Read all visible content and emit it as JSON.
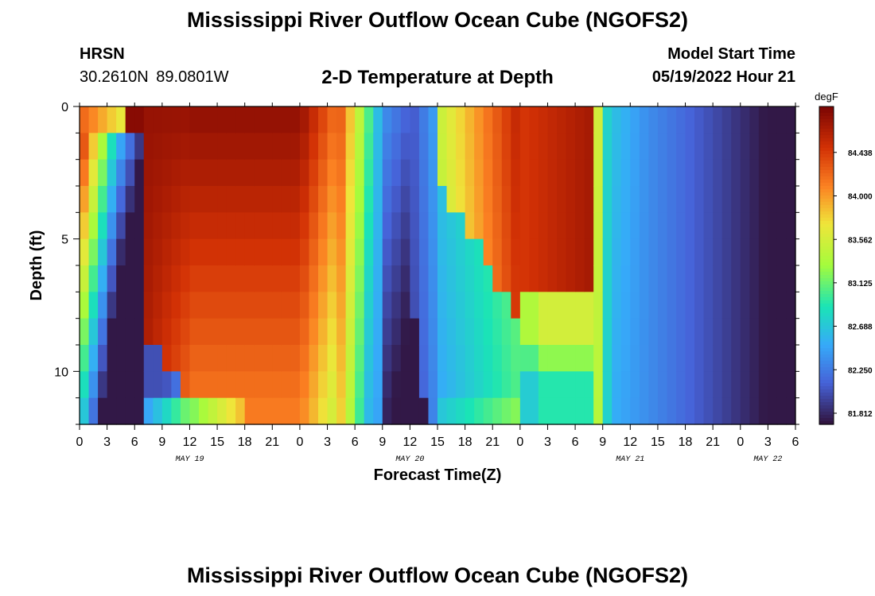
{
  "header": {
    "title": "Mississippi River Outflow Ocean Cube (NGOFS2)",
    "station": "HRSN",
    "coords": "30.2610N  89.0801W",
    "subtitle": "2-D Temperature at Depth",
    "model_label": "Model Start Time",
    "model_time": "05/19/2022 Hour 21"
  },
  "footer": {
    "title": "Mississippi River Outflow Ocean Cube (NGOFS2)"
  },
  "chart_data": {
    "type": "heatmap",
    "title": "2-D Temperature at Depth",
    "xlabel": "Forecast Time(Z)",
    "ylabel": "Depth (ft)",
    "x_ticks": [
      "0",
      "3",
      "6",
      "9",
      "12",
      "15",
      "18",
      "21",
      "0",
      "3",
      "6",
      "9",
      "12",
      "15",
      "18",
      "21",
      "0",
      "3",
      "6",
      "9",
      "12",
      "15",
      "18",
      "21",
      "0",
      "3",
      "6"
    ],
    "x_range_hours": [
      0,
      78
    ],
    "date_labels": [
      {
        "label": "MAY 19",
        "hour": 12
      },
      {
        "label": "MAY 20",
        "hour": 36
      },
      {
        "label": "MAY 21",
        "hour": 60
      },
      {
        "label": "MAY 22",
        "hour": 75
      }
    ],
    "y_ticks": [
      "0",
      "5",
      "10"
    ],
    "y_range": [
      0,
      12
    ],
    "y_reversed": true,
    "colorbar": {
      "unit": "degF",
      "min": 81.7,
      "max": 84.9,
      "labels": [
        "84.438",
        "84.000",
        "83.562",
        "83.125",
        "82.688",
        "82.250",
        "81.812"
      ]
    }
  }
}
